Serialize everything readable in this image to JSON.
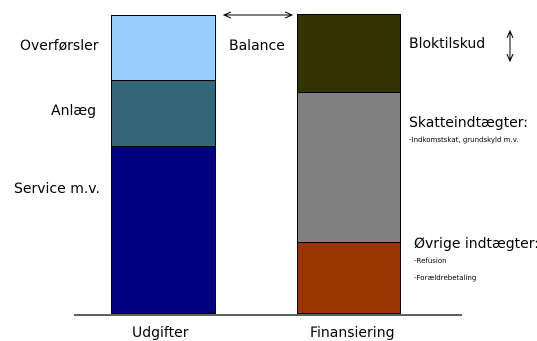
{
  "left_column": {
    "caption": "Udgifter",
    "segments": [
      {
        "label": "Overførsler",
        "color": "#99ccff"
      },
      {
        "label": "Anlæg",
        "color": "#336677"
      },
      {
        "label": "Service m.v.",
        "color": "#000080"
      }
    ]
  },
  "right_column": {
    "caption": "Finansiering",
    "segments": [
      {
        "label": "Bloktilskud",
        "color": "#333300"
      },
      {
        "label": "Skatteindtægter:",
        "detail": [
          "-Indkomstskat, grundskyld m.v."
        ],
        "color": "#808080"
      },
      {
        "label": "Øvrige indtægter:",
        "detail": [
          "-Refusion",
          "-Forældrebetaling"
        ],
        "color": "#993300"
      }
    ]
  },
  "balance_label": "Balance",
  "colors": {
    "border": "#000000",
    "background": "#ffffff"
  },
  "icons": [
    "double-headed-horizontal-arrow",
    "double-headed-vertical-arrow"
  ]
}
